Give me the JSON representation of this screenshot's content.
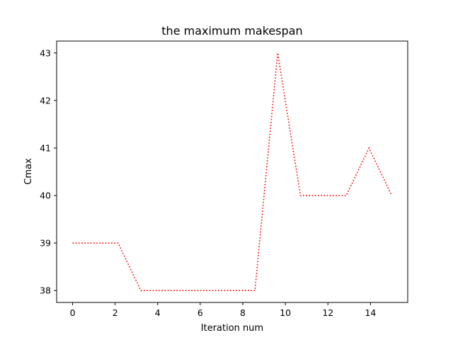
{
  "chart_data": {
    "type": "line",
    "title": "the maximum makespan",
    "xlabel": "Iteration num",
    "ylabel": "Cmax",
    "x": [
      0,
      1.07,
      2.14,
      3.21,
      4.29,
      5.36,
      6.43,
      7.5,
      8.57,
      9.64,
      10.71,
      11.79,
      12.86,
      13.93,
      15
    ],
    "series": [
      {
        "values": [
          39,
          39,
          39,
          38,
          38,
          38,
          38,
          38,
          38,
          43,
          40,
          40,
          40,
          41,
          40
        ],
        "color": "#ff0000",
        "line_style": "dotted"
      }
    ],
    "xlim": [
      -0.75,
      15.75
    ],
    "ylim": [
      37.75,
      43.25
    ],
    "xticks": [
      0,
      2,
      4,
      6,
      8,
      10,
      12,
      14
    ],
    "yticks": [
      38,
      39,
      40,
      41,
      42,
      43
    ],
    "grid": false,
    "legend": "none"
  }
}
